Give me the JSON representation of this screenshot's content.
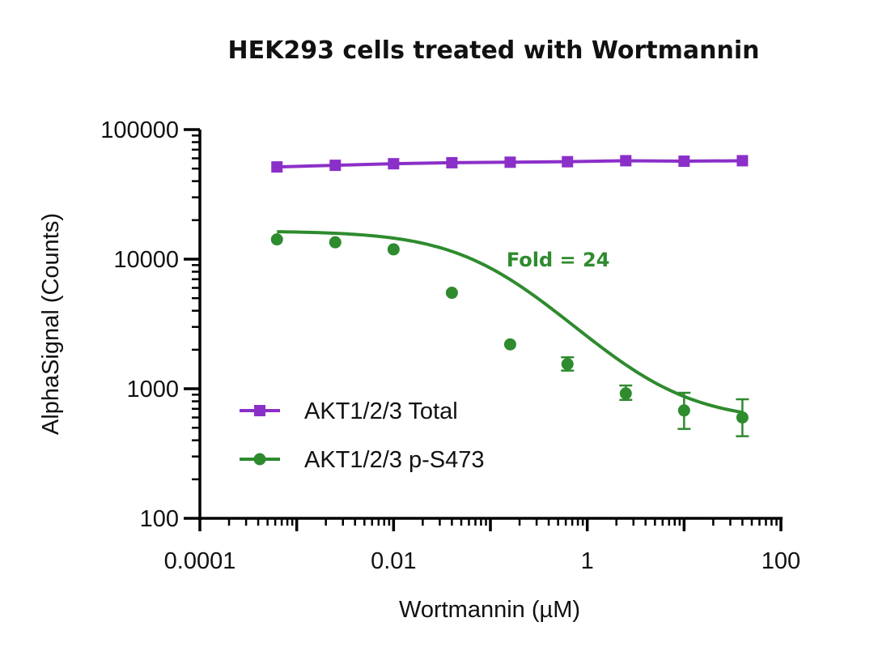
{
  "chart_data": {
    "type": "scatter",
    "title": "HEK293 cells treated with Wortmannin",
    "xlabel": "Wortmannin (µM)",
    "ylabel": "AlphaSignal (Counts)",
    "xscale": "log",
    "yscale": "log",
    "xlim": [
      0.0001,
      100
    ],
    "ylim": [
      100,
      100000
    ],
    "x_ticks": [
      {
        "value": 0.0001,
        "label": "0.0001"
      },
      {
        "value": 0.01,
        "label": "0.01"
      },
      {
        "value": 1,
        "label": "1"
      },
      {
        "value": 100,
        "label": "100"
      }
    ],
    "y_ticks": [
      {
        "value": 100,
        "label": "100"
      },
      {
        "value": 1000,
        "label": "1000"
      },
      {
        "value": 10000,
        "label": "10000"
      },
      {
        "value": 100000,
        "label": "100000"
      }
    ],
    "grid": false,
    "legend_position": "bottom-left",
    "series": [
      {
        "name": "AKT1/2/3 Total",
        "color": "#8B2FC9",
        "marker": "square",
        "x": [
          0.000625,
          0.0025,
          0.01,
          0.04,
          0.16,
          0.625,
          2.5,
          10,
          40
        ],
        "y": [
          51500,
          53000,
          54500,
          55500,
          56000,
          56500,
          57500,
          57000,
          57500
        ]
      },
      {
        "name": "AKT1/2/3 p-S473",
        "color": "#2E8B2E",
        "marker": "circle",
        "x": [
          0.000625,
          0.0025,
          0.01,
          0.04,
          0.16,
          0.625,
          2.5,
          10,
          40
        ],
        "y": [
          14200,
          13500,
          11900,
          5500,
          2200,
          1550,
          920,
          680,
          600
        ],
        "y_err_low": [
          null,
          null,
          null,
          null,
          null,
          1380,
          820,
          490,
          430
        ],
        "y_err_high": [
          null,
          null,
          null,
          null,
          null,
          1750,
          1060,
          930,
          830
        ],
        "fit": {
          "model": "4PL",
          "top": 16500,
          "bottom": 560,
          "ic50": 0.1,
          "hill": 0.85
        }
      }
    ],
    "annotations": [
      {
        "text": "Fold = 24",
        "color": "#2E8B2E",
        "x": 0.5,
        "y": 8800
      }
    ]
  }
}
